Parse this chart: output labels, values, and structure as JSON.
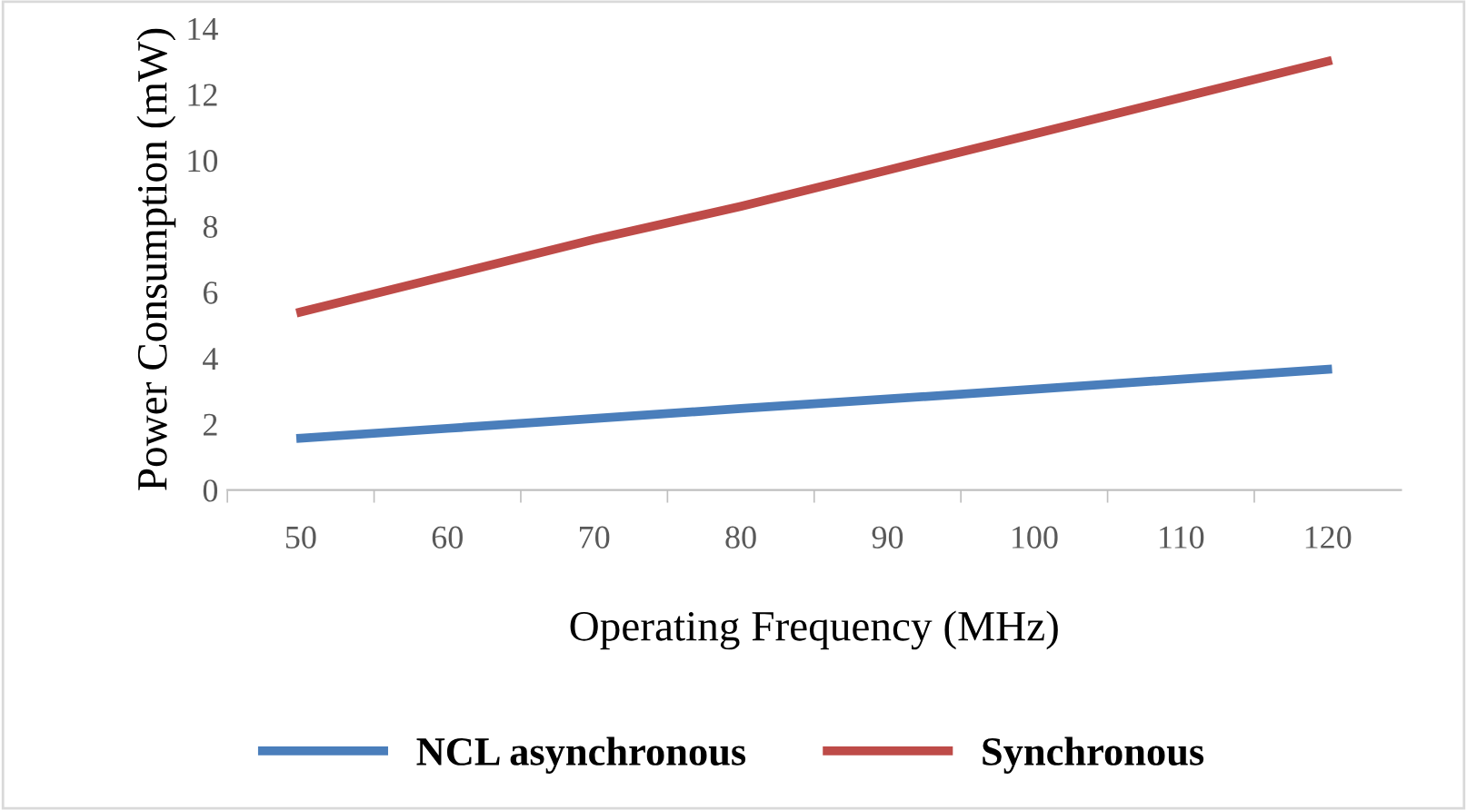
{
  "chart_data": {
    "type": "line",
    "xlabel": "Operating Frequency (MHz)",
    "ylabel": "Power Consumption (mW)",
    "categories": [
      "50",
      "60",
      "70",
      "80",
      "90",
      "100",
      "110",
      "120"
    ],
    "series": [
      {
        "name": "NCL asynchronous",
        "color": "#4a7ebb",
        "values": [
          1.57,
          1.87,
          2.17,
          2.47,
          2.76,
          3.06,
          3.36,
          3.66
        ]
      },
      {
        "name": "Synchronous",
        "color": "#be4b48",
        "values": [
          5.4,
          6.5,
          7.6,
          8.6,
          9.7,
          10.8,
          11.9,
          13.0
        ]
      }
    ],
    "ylim": [
      0,
      14
    ],
    "yticks": [
      0,
      2,
      4,
      6,
      8,
      10,
      12,
      14
    ],
    "grid": false,
    "legend": "bottom",
    "marker": "none",
    "line_style": "solid"
  }
}
